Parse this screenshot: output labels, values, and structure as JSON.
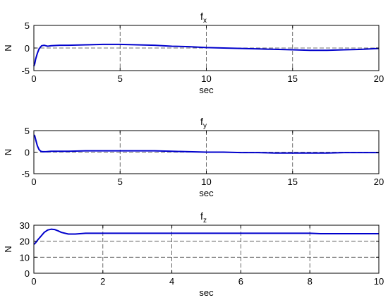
{
  "chart_data": [
    {
      "type": "line",
      "title": "f",
      "title_sub": "x",
      "xlabel": "sec",
      "ylabel": "N",
      "xlim": [
        0,
        20
      ],
      "ylim": [
        -5,
        5
      ],
      "xticks": [
        0,
        5,
        10,
        15,
        20
      ],
      "yticks": [
        -5,
        0,
        5
      ],
      "grid": true,
      "series": [
        {
          "color": "#0000cc",
          "x": [
            0,
            0.05,
            0.1,
            0.2,
            0.3,
            0.45,
            0.6,
            0.8,
            1.0,
            1.5,
            2,
            3,
            4,
            5,
            6,
            7,
            8,
            9,
            10,
            11,
            12,
            13,
            14,
            15,
            16,
            17,
            18,
            19,
            19.5,
            20
          ],
          "y": [
            -4,
            -3.5,
            -2.5,
            -1.2,
            -0.2,
            0.5,
            0.6,
            0.4,
            0.5,
            0.6,
            0.6,
            0.7,
            0.8,
            0.8,
            0.7,
            0.6,
            0.4,
            0.3,
            0.1,
            0,
            -0.1,
            -0.2,
            -0.3,
            -0.4,
            -0.5,
            -0.5,
            -0.4,
            -0.3,
            -0.2,
            -0.1
          ]
        }
      ]
    },
    {
      "type": "line",
      "title": "f",
      "title_sub": "y",
      "xlabel": "sec",
      "ylabel": "N",
      "xlim": [
        0,
        20
      ],
      "ylim": [
        -5,
        5
      ],
      "xticks": [
        0,
        5,
        10,
        15,
        20
      ],
      "yticks": [
        -5,
        0,
        5
      ],
      "grid": true,
      "series": [
        {
          "color": "#0000cc",
          "x": [
            0,
            0.05,
            0.1,
            0.2,
            0.3,
            0.4,
            0.5,
            0.7,
            1.0,
            2,
            3,
            4,
            5,
            6,
            7,
            8,
            9,
            10,
            11,
            12,
            13,
            14,
            15,
            16,
            17,
            18,
            19,
            20
          ],
          "y": [
            4,
            3.8,
            3.0,
            1.5,
            0.6,
            0.2,
            0.1,
            0.1,
            0.2,
            0.2,
            0.3,
            0.3,
            0.3,
            0.3,
            0.3,
            0.2,
            0.1,
            0,
            0,
            -0.1,
            -0.1,
            -0.2,
            -0.2,
            -0.2,
            -0.2,
            -0.1,
            -0.1,
            -0.1
          ]
        }
      ]
    },
    {
      "type": "line",
      "title": "f",
      "title_sub": "z",
      "xlabel": "sec",
      "ylabel": "N",
      "xlim": [
        0,
        10
      ],
      "ylim": [
        0,
        30
      ],
      "xticks": [
        0,
        2,
        4,
        6,
        8,
        10
      ],
      "yticks": [
        0,
        10,
        20,
        30
      ],
      "grid": true,
      "series": [
        {
          "color": "#0000cc",
          "x": [
            0,
            0.05,
            0.1,
            0.2,
            0.3,
            0.4,
            0.5,
            0.6,
            0.7,
            0.8,
            1.0,
            1.2,
            1.5,
            2,
            3,
            4,
            5,
            6,
            7,
            8,
            8.3,
            9,
            10
          ],
          "y": [
            18,
            19,
            20.5,
            23,
            25.5,
            27,
            27.5,
            27.3,
            26.5,
            25.5,
            24.5,
            24.5,
            25,
            25,
            25,
            25,
            25,
            25,
            25,
            25,
            24.7,
            24.7,
            24.7
          ]
        }
      ]
    }
  ]
}
